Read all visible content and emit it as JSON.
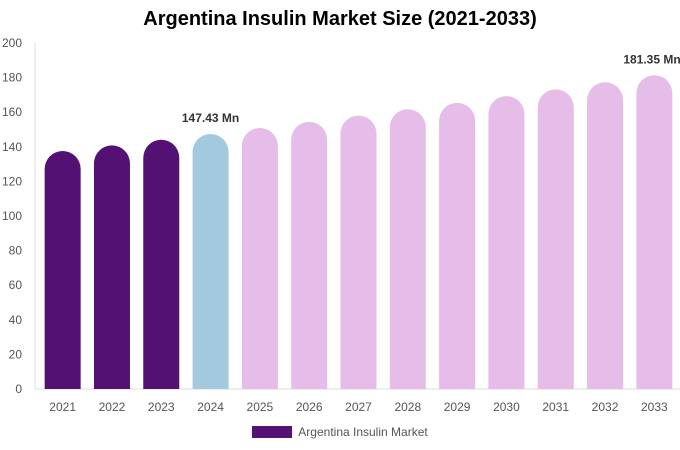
{
  "chart_data": {
    "type": "bar",
    "title": "Argentina Insulin Market Size (2021-2033)",
    "categories": [
      "2021",
      "2022",
      "2023",
      "2024",
      "2025",
      "2026",
      "2027",
      "2028",
      "2029",
      "2030",
      "2031",
      "2032",
      "2033"
    ],
    "series": [
      {
        "name": "Argentina Insulin Market",
        "values": [
          137.6,
          140.8,
          144.1,
          147.43,
          150.9,
          154.4,
          158.0,
          161.7,
          165.4,
          169.3,
          173.2,
          177.3,
          181.35
        ]
      }
    ],
    "ylim": [
      0,
      200
    ],
    "yticks": [
      0,
      20,
      40,
      60,
      80,
      100,
      120,
      140,
      160,
      180,
      200
    ],
    "data_labels": [
      {
        "category": "2024",
        "text": "147.43 Mn"
      },
      {
        "category": "2033",
        "text": "181.35 Mn"
      }
    ],
    "bar_colors": {
      "historical": "#521173",
      "base_year": "#a3c9de",
      "forecast": "#e6bce8"
    },
    "grid": false,
    "legend_position": "bottom"
  }
}
